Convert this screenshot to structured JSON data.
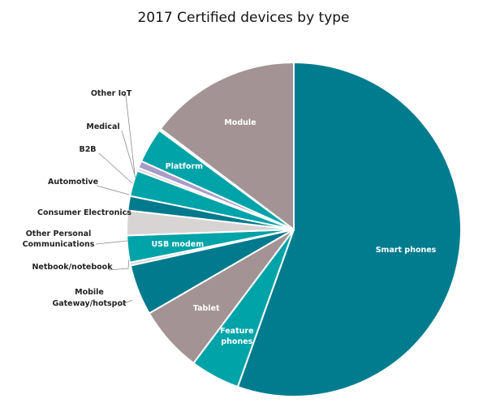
{
  "chart_data": {
    "type": "pie",
    "title": "2017 Certified devices by type",
    "start": "12 o'clock, clockwise",
    "slices": [
      {
        "label": "Smart phones",
        "value": 55.5,
        "color": "#007c8e",
        "label_inside": true
      },
      {
        "label": "Feature phones",
        "value": 4.8,
        "color": "#00a3a8",
        "label_inside": true
      },
      {
        "label": "Tablet",
        "value": 6.4,
        "color": "#a39394",
        "label_inside": true
      },
      {
        "label": "Mobile Gateway/hotspot",
        "value": 4.9,
        "color": "#007a8c",
        "label_inside": false
      },
      {
        "label": "Netbook/notebook",
        "value": 0.3,
        "color": "#d9d4d4",
        "label_inside": false
      },
      {
        "label": "USB modem",
        "value": 2.6,
        "color": "#00a3a8",
        "label_inside": true
      },
      {
        "label": "Other Personal Communications",
        "value": 2.4,
        "color": "#d9d4d4",
        "label_inside": false
      },
      {
        "label": "Consumer Electronics",
        "value": 1.4,
        "color": "#007a8c",
        "label_inside": false
      },
      {
        "label": "Automotive",
        "value": 2.5,
        "color": "#00a3a8",
        "label_inside": false
      },
      {
        "label": "B2B",
        "value": 0.3,
        "color": "#d9d4d4",
        "label_inside": false
      },
      {
        "label": "Medical",
        "value": 0.7,
        "color": "#a99cc8",
        "label_inside": false
      },
      {
        "label": "Platform",
        "value": 3.4,
        "color": "#00a3a8",
        "label_inside": true
      },
      {
        "label": "Other IoT",
        "value": 0.2,
        "color": "#d9d4d4",
        "label_inside": false
      },
      {
        "label": "Module",
        "value": 14.7,
        "color": "#a39394",
        "label_inside": true
      }
    ]
  }
}
